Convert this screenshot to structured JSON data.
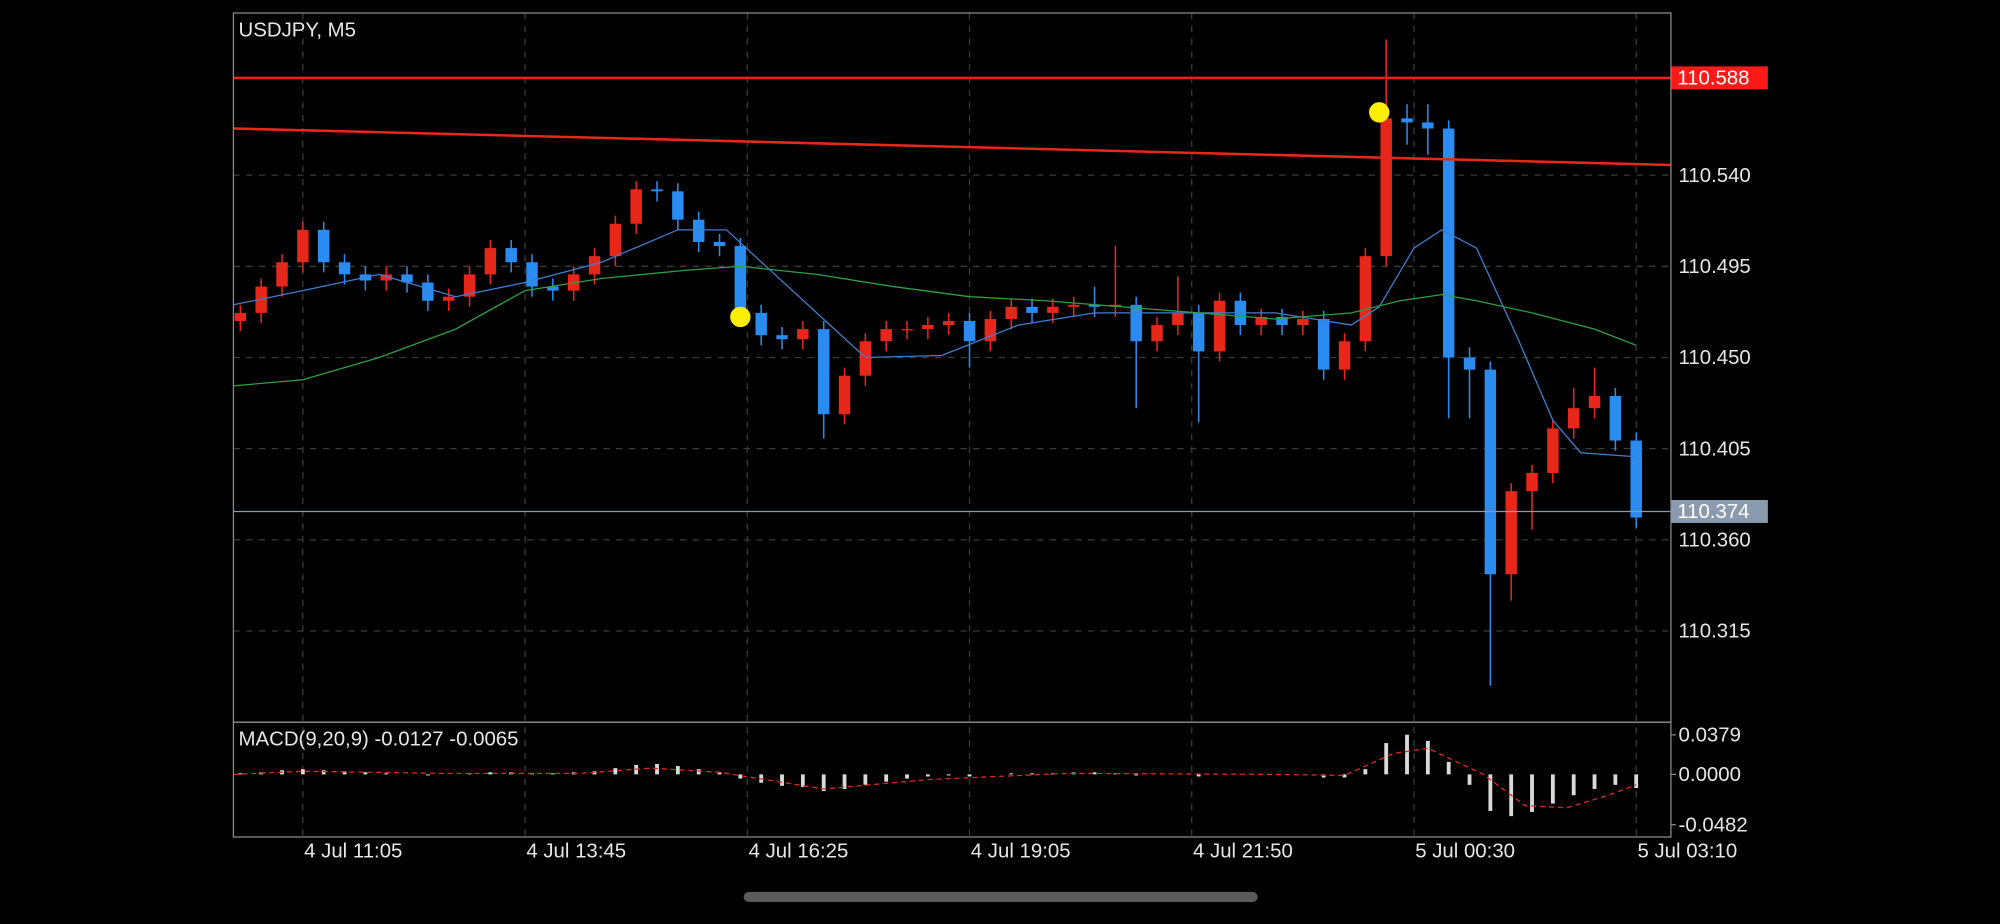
{
  "chart_data": [
    {
      "type": "candlestick",
      "title": "USDJPY, M5",
      "x": [
        -9,
        -6,
        -3,
        0,
        3,
        6,
        9,
        12,
        15,
        18,
        21,
        24,
        27,
        30,
        33,
        36,
        39,
        42,
        45,
        48,
        51,
        54,
        57,
        60,
        63,
        66,
        69,
        72,
        75,
        78,
        81,
        84,
        87,
        90,
        93,
        96,
        99,
        102,
        105,
        108,
        111,
        114,
        117,
        120,
        123,
        126,
        129,
        132,
        135,
        138,
        141,
        144,
        147,
        150,
        153,
        156,
        159,
        162,
        165,
        168,
        171,
        174,
        177,
        180,
        183,
        186,
        189,
        192
      ],
      "open": [
        110.468,
        110.472,
        110.485,
        110.497,
        110.513,
        110.497,
        110.491,
        110.488,
        110.491,
        110.487,
        110.478,
        110.48,
        110.491,
        110.504,
        110.497,
        110.485,
        110.483,
        110.491,
        110.5,
        110.516,
        110.533,
        110.532,
        110.518,
        110.507,
        110.505,
        110.472,
        110.461,
        110.459,
        110.464,
        110.422,
        110.441,
        110.458,
        110.464,
        110.464,
        110.466,
        110.468,
        110.458,
        110.469,
        110.475,
        110.472,
        110.475,
        110.476,
        110.475,
        110.476,
        110.458,
        110.466,
        110.472,
        110.453,
        110.478,
        110.466,
        110.47,
        110.466,
        110.469,
        110.444,
        110.458,
        110.5,
        110.568,
        110.566,
        110.563,
        110.45,
        110.444,
        110.343,
        110.384,
        110.393,
        110.415,
        110.425,
        110.431,
        110.409
      ],
      "high": [
        110.476,
        110.489,
        110.501,
        110.517,
        110.517,
        110.501,
        110.495,
        110.495,
        110.495,
        110.491,
        110.484,
        110.495,
        110.508,
        110.508,
        110.501,
        110.489,
        110.495,
        110.504,
        110.52,
        110.537,
        110.537,
        110.536,
        110.522,
        110.511,
        110.509,
        110.476,
        110.465,
        110.468,
        110.468,
        110.445,
        110.462,
        110.468,
        110.468,
        110.47,
        110.472,
        110.472,
        110.473,
        110.479,
        110.479,
        110.479,
        110.48,
        110.485,
        110.505,
        110.48,
        110.47,
        110.49,
        110.476,
        110.482,
        110.482,
        110.474,
        110.474,
        110.473,
        110.473,
        110.462,
        110.504,
        110.607,
        110.575,
        110.575,
        110.567,
        110.455,
        110.448,
        110.388,
        110.397,
        110.419,
        110.435,
        110.445,
        110.435,
        110.413
      ],
      "low": [
        110.463,
        110.467,
        110.48,
        110.492,
        110.492,
        110.486,
        110.483,
        110.483,
        110.482,
        110.473,
        110.473,
        110.475,
        110.486,
        110.492,
        110.48,
        110.478,
        110.478,
        110.486,
        110.495,
        110.511,
        110.527,
        110.513,
        110.502,
        110.5,
        110.467,
        110.456,
        110.454,
        110.454,
        110.41,
        110.417,
        110.436,
        110.453,
        110.459,
        110.459,
        110.461,
        110.445,
        110.453,
        110.464,
        110.467,
        110.467,
        110.47,
        110.47,
        110.47,
        110.425,
        110.453,
        110.461,
        110.418,
        110.448,
        110.461,
        110.461,
        110.461,
        110.461,
        110.439,
        110.439,
        110.453,
        110.495,
        110.555,
        110.55,
        110.42,
        110.42,
        110.288,
        110.33,
        110.365,
        110.388,
        110.41,
        110.42,
        110.404,
        110.366
      ],
      "close": [
        110.472,
        110.485,
        110.497,
        110.513,
        110.497,
        110.491,
        110.488,
        110.491,
        110.487,
        110.478,
        110.48,
        110.491,
        110.504,
        110.497,
        110.485,
        110.483,
        110.491,
        110.5,
        110.516,
        110.533,
        110.532,
        110.518,
        110.507,
        110.505,
        110.472,
        110.461,
        110.459,
        110.464,
        110.422,
        110.441,
        110.458,
        110.464,
        110.464,
        110.466,
        110.468,
        110.458,
        110.469,
        110.475,
        110.472,
        110.475,
        110.476,
        110.475,
        110.476,
        110.458,
        110.466,
        110.472,
        110.453,
        110.478,
        110.466,
        110.47,
        110.466,
        110.469,
        110.444,
        110.458,
        110.5,
        110.568,
        110.566,
        110.563,
        110.45,
        110.444,
        110.343,
        110.384,
        110.393,
        110.415,
        110.425,
        110.431,
        110.409,
        110.371
      ],
      "up_color": "#e8271b",
      "down_color": "#2a8cf0",
      "moving_averages": [
        {
          "color": "#3f7fd0",
          "x": [
            -10,
            0,
            11,
            22,
            32,
            43,
            54,
            61,
            67,
            74,
            81,
            92,
            103,
            114,
            125,
            140,
            151,
            155,
            160,
            164,
            169,
            175,
            180,
            184,
            192
          ],
          "values": [
            110.476,
            110.483,
            110.491,
            110.48,
            110.487,
            110.497,
            110.513,
            110.513,
            110.494,
            110.472,
            110.45,
            110.451,
            110.466,
            110.472,
            110.472,
            110.472,
            110.466,
            110.475,
            110.504,
            110.513,
            110.504,
            110.459,
            110.419,
            110.403,
            110.401
          ]
        },
        {
          "color": "#2ea043",
          "x": [
            -10,
            0,
            11,
            22,
            32,
            43,
            55,
            63,
            74,
            85,
            96,
            107,
            118,
            129,
            140,
            151,
            158,
            164,
            169,
            177,
            186,
            192
          ],
          "values": [
            110.436,
            110.439,
            110.45,
            110.464,
            110.483,
            110.489,
            110.493,
            110.495,
            110.491,
            110.485,
            110.48,
            110.478,
            110.475,
            110.472,
            110.469,
            110.472,
            110.478,
            110.481,
            110.478,
            110.472,
            110.464,
            110.456
          ]
        }
      ],
      "levels": [
        {
          "value": 110.588,
          "color": "#ff1a1a"
        },
        {
          "value": 110.374,
          "color": "#8a9bb0"
        }
      ],
      "trendline": {
        "color": "#e8271b",
        "x": [
          -10,
          197
        ],
        "values": [
          110.563,
          110.545
        ]
      },
      "markers": {
        "color": "#ffee00",
        "x": [
          63,
          155
        ],
        "values": [
          110.47,
          110.571
        ]
      },
      "xlim": [
        -10,
        197
      ],
      "xticks": [
        {
          "value": 0,
          "label": "4 Jul 11:05"
        },
        {
          "value": 32,
          "label": "4 Jul 13:45"
        },
        {
          "value": 64,
          "label": "4 Jul 16:25"
        },
        {
          "value": 96,
          "label": "4 Jul 19:05"
        },
        {
          "value": 128,
          "label": "4 Jul 21:50"
        },
        {
          "value": 160,
          "label": "5 Jul 00:30"
        },
        {
          "value": 192,
          "label": "5 Jul 03:10"
        }
      ],
      "ylim": [
        110.27,
        110.62
      ],
      "yticks": [
        110.315,
        {
          "value": 110.36,
          "label": "110.360"
        },
        110.405,
        {
          "value": 110.45,
          "label": "110.450"
        },
        110.495,
        {
          "value": 110.54,
          "label": "110.540"
        }
      ],
      "grid": true
    },
    {
      "type": "macd",
      "title": "MACD(9,20,9) -0.0127 -0.0065",
      "x": [
        -9,
        -6,
        -3,
        0,
        3,
        6,
        9,
        12,
        15,
        18,
        21,
        24,
        27,
        30,
        33,
        36,
        39,
        42,
        45,
        48,
        51,
        54,
        57,
        60,
        63,
        66,
        69,
        72,
        75,
        78,
        81,
        84,
        87,
        90,
        93,
        96,
        99,
        102,
        105,
        108,
        111,
        114,
        117,
        120,
        123,
        126,
        129,
        132,
        135,
        138,
        141,
        144,
        147,
        150,
        153,
        156,
        159,
        162,
        165,
        168,
        171,
        174,
        177,
        180,
        183,
        186,
        189,
        192
      ],
      "histogram": {
        "color": "#d9d9d9",
        "values": [
          0.001,
          0.002,
          0.004,
          0.005,
          0.004,
          0.003,
          0.002,
          0.001,
          0.0,
          -0.001,
          0.0,
          0.001,
          0.002,
          0.002,
          0.001,
          0.001,
          0.002,
          0.003,
          0.006,
          0.009,
          0.01,
          0.008,
          0.005,
          0.002,
          -0.004,
          -0.008,
          -0.011,
          -0.012,
          -0.016,
          -0.014,
          -0.01,
          -0.007,
          -0.004,
          -0.002,
          -0.001,
          -0.002,
          0.0,
          0.001,
          0.001,
          0.001,
          0.002,
          0.002,
          0.001,
          -0.001,
          0.0,
          0.0,
          -0.002,
          0.0,
          0.0,
          0.0,
          0.0,
          0.0,
          -0.003,
          -0.003,
          0.005,
          0.03,
          0.038,
          0.032,
          0.012,
          -0.01,
          -0.035,
          -0.04,
          -0.036,
          -0.028,
          -0.02,
          -0.014,
          -0.01,
          -0.013
        ]
      },
      "signal": {
        "color": "#e8271b",
        "x": [
          -10,
          0,
          20,
          40,
          50,
          60,
          75,
          90,
          110,
          140,
          150,
          157,
          162,
          170,
          176,
          182,
          188,
          192
        ],
        "values": [
          0.0,
          0.003,
          0.001,
          0.001,
          0.006,
          0.002,
          -0.014,
          -0.005,
          0.001,
          0.0,
          -0.001,
          0.02,
          0.025,
          0.0,
          -0.03,
          -0.032,
          -0.02,
          -0.01
        ]
      },
      "xlim": [
        -10,
        197
      ],
      "ylim": [
        -0.06,
        0.05
      ],
      "yticks": [
        -0.0482,
        {
          "value": 0,
          "label": "0.0000"
        },
        0.0379
      ]
    }
  ]
}
